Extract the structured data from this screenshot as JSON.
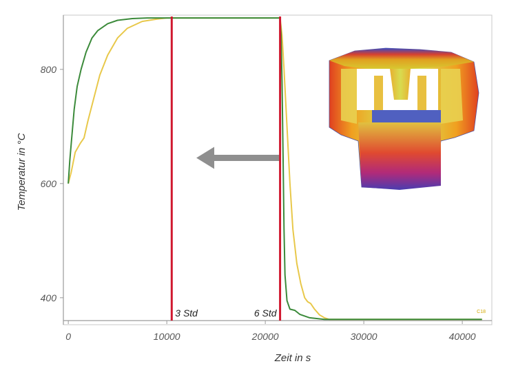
{
  "chart_data": {
    "type": "line",
    "xlabel": "Zeit in s",
    "ylabel": "Temperatur in °C",
    "xlim": [
      -500,
      43000
    ],
    "ylim": [
      360,
      895
    ],
    "x_ticks": [
      0,
      10000,
      20000,
      30000,
      40000
    ],
    "y_ticks": [
      400,
      600,
      800
    ],
    "grid": false,
    "series": [
      {
        "color": "#3b8a3a",
        "points": [
          [
            0,
            600
          ],
          [
            150,
            640
          ],
          [
            300,
            670
          ],
          [
            600,
            730
          ],
          [
            900,
            770
          ],
          [
            1300,
            800
          ],
          [
            1800,
            830
          ],
          [
            2400,
            855
          ],
          [
            3000,
            868
          ],
          [
            4000,
            880
          ],
          [
            5000,
            886
          ],
          [
            6500,
            889
          ],
          [
            8000,
            890
          ],
          [
            21500,
            890
          ],
          [
            21600,
            860
          ],
          [
            21700,
            780
          ],
          [
            21800,
            650
          ],
          [
            21900,
            520
          ],
          [
            22000,
            440
          ],
          [
            22200,
            395
          ],
          [
            22500,
            380
          ],
          [
            23000,
            378
          ],
          [
            23500,
            371
          ],
          [
            24500,
            365
          ],
          [
            26000,
            362
          ],
          [
            42000,
            362
          ]
        ]
      },
      {
        "color": "#e8c84a",
        "points": [
          [
            0,
            600
          ],
          [
            300,
            620
          ],
          [
            700,
            655
          ],
          [
            1200,
            670
          ],
          [
            1600,
            680
          ],
          [
            2000,
            710
          ],
          [
            2600,
            750
          ],
          [
            3200,
            790
          ],
          [
            4000,
            825
          ],
          [
            5000,
            855
          ],
          [
            6000,
            872
          ],
          [
            7500,
            884
          ],
          [
            9000,
            888
          ],
          [
            10000,
            890
          ],
          [
            21500,
            890
          ],
          [
            21700,
            860
          ],
          [
            21900,
            800
          ],
          [
            22200,
            700
          ],
          [
            22500,
            600
          ],
          [
            22800,
            520
          ],
          [
            23200,
            460
          ],
          [
            23600,
            425
          ],
          [
            24000,
            400
          ],
          [
            24300,
            393
          ],
          [
            24600,
            390
          ],
          [
            25000,
            380
          ],
          [
            25500,
            370
          ],
          [
            26000,
            365
          ],
          [
            26500,
            362
          ],
          [
            42000,
            362
          ]
        ]
      }
    ],
    "vertical_lines": [
      {
        "x": 10500,
        "label": "3 Std",
        "color": "#d0182f"
      },
      {
        "x": 21500,
        "label": "6 Std",
        "color": "#d0182f"
      }
    ],
    "arrow": {
      "from": 21500,
      "to": 13000,
      "y": 645,
      "color": "#8f8f8f"
    },
    "corner_label": "C18"
  }
}
